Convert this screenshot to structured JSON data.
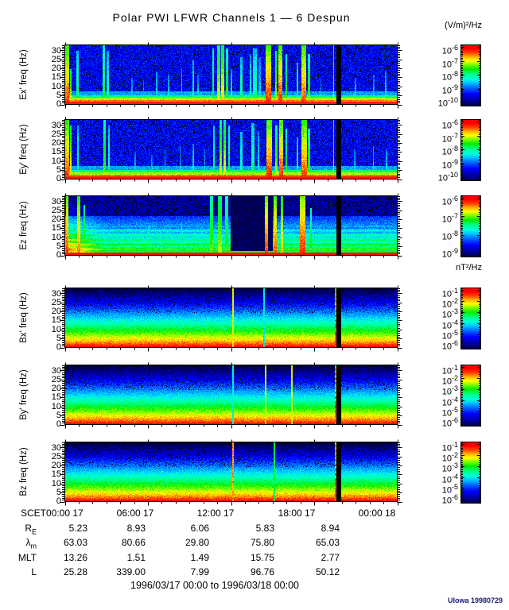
{
  "title": "Polar PWI LFWR Channels 1 — 6 Despun",
  "units": {
    "electric": "(V/m)²/Hz",
    "magnetic": "nT²/Hz"
  },
  "credit": "UIowa 19980729",
  "footer": {
    "range": "1996/03/17 00:00 to 1996/03/18 00:00"
  },
  "time_axis": {
    "label": "SCET",
    "ticks": [
      "00:00 17",
      "06:00 17",
      "12:00 17",
      "18:00 17",
      "00:00 18"
    ]
  },
  "ephemeris": {
    "rows": [
      {
        "label_main": "R",
        "label_sub": "E",
        "values": [
          "5.23",
          "8.93",
          "6.06",
          "5.83",
          "8.94"
        ]
      },
      {
        "label_main": "λ",
        "label_sub": "m",
        "values": [
          "63.03",
          "80.66",
          "29.80",
          "75.80",
          "65.03"
        ]
      },
      {
        "label_main": "MLT",
        "label_sub": "",
        "values": [
          "13.26",
          "1.51",
          "1.49",
          "15.75",
          "2.77"
        ]
      },
      {
        "label_main": "L",
        "label_sub": "",
        "values": [
          "25.28",
          "339.00",
          "7.99",
          "96.76",
          "50.12"
        ]
      }
    ]
  },
  "chart_data": {
    "type": "heatmap",
    "title": "Polar PWI LFWR Channels 1 — 6 Despun",
    "x_range_hours": [
      0,
      24
    ],
    "x_major_ticks_hours": [
      0,
      6,
      12,
      18,
      24
    ],
    "x_tick_labels": [
      "00:00 17",
      "06:00 17",
      "12:00 17",
      "18:00 17",
      "00:00 18"
    ],
    "y_range_hz": [
      0,
      33
    ],
    "y_major_ticks_hz": [
      0,
      5,
      10,
      15,
      20,
      25,
      30
    ],
    "electric_scale": "(V/m)²/Hz",
    "magnetic_scale": "nT²/Hz",
    "colormap_stops": [
      [
        0.0,
        "#000000"
      ],
      [
        0.06,
        "#00004d"
      ],
      [
        0.14,
        "#0000a0"
      ],
      [
        0.25,
        "#0000ff"
      ],
      [
        0.35,
        "#0066ff"
      ],
      [
        0.44,
        "#00ccff"
      ],
      [
        0.5,
        "#00ffdd"
      ],
      [
        0.58,
        "#00ff88"
      ],
      [
        0.66,
        "#00ee00"
      ],
      [
        0.74,
        "#88ff00"
      ],
      [
        0.8,
        "#ffff00"
      ],
      [
        0.87,
        "#ffaa00"
      ],
      [
        0.93,
        "#ff4400"
      ],
      [
        1.0,
        "#ff0000"
      ]
    ],
    "panels": [
      {
        "id": "Ex",
        "ylabel": "Ex' freq (Hz)",
        "kind": "E",
        "seed": 11,
        "colorbar_exponents": [
          "-6",
          "-7",
          "-8",
          "-9",
          "-10"
        ],
        "gap": {
          "t": 0.824,
          "w": 0.013
        },
        "features": [
          {
            "t": 0.005,
            "w": 0.01,
            "h": 1.0,
            "v": 0.96
          },
          {
            "t": 0.015,
            "w": 0.006,
            "h": 0.6,
            "v": 0.8
          },
          {
            "t": 0.036,
            "w": 0.005,
            "h": 0.9,
            "v": 0.62
          },
          {
            "t": 0.115,
            "w": 0.007,
            "h": 1.0,
            "v": 0.66
          },
          {
            "t": 0.127,
            "w": 0.005,
            "h": 0.9,
            "v": 0.58
          },
          {
            "t": 0.2,
            "w": 0.004,
            "h": 0.45,
            "v": 0.5
          },
          {
            "t": 0.235,
            "w": 0.004,
            "h": 0.4,
            "v": 0.48
          },
          {
            "t": 0.275,
            "w": 0.004,
            "h": 0.55,
            "v": 0.52
          },
          {
            "t": 0.31,
            "w": 0.004,
            "h": 0.5,
            "v": 0.5
          },
          {
            "t": 0.35,
            "w": 0.004,
            "h": 0.6,
            "v": 0.52
          },
          {
            "t": 0.385,
            "w": 0.005,
            "h": 0.75,
            "v": 0.55
          },
          {
            "t": 0.4,
            "w": 0.004,
            "h": 0.5,
            "v": 0.5
          },
          {
            "t": 0.445,
            "w": 0.006,
            "h": 0.95,
            "v": 0.66
          },
          {
            "t": 0.462,
            "w": 0.009,
            "h": 1.0,
            "v": 0.82
          },
          {
            "t": 0.474,
            "w": 0.009,
            "h": 1.0,
            "v": 0.86
          },
          {
            "t": 0.487,
            "w": 0.006,
            "h": 0.95,
            "v": 0.7
          },
          {
            "t": 0.5,
            "w": 0.004,
            "h": 0.6,
            "v": 0.55
          },
          {
            "t": 0.53,
            "w": 0.005,
            "h": 0.8,
            "v": 0.6
          },
          {
            "t": 0.558,
            "w": 0.006,
            "h": 0.85,
            "v": 0.55
          },
          {
            "t": 0.57,
            "w": 0.012,
            "h": 0.95,
            "v": 0.6
          },
          {
            "t": 0.585,
            "w": 0.006,
            "h": 0.8,
            "v": 0.5
          },
          {
            "t": 0.612,
            "w": 0.018,
            "h": 1.0,
            "v": 0.98
          },
          {
            "t": 0.634,
            "w": 0.006,
            "h": 0.9,
            "v": 0.8
          },
          {
            "t": 0.648,
            "w": 0.012,
            "h": 1.0,
            "v": 0.97
          },
          {
            "t": 0.665,
            "w": 0.005,
            "h": 0.85,
            "v": 0.7
          },
          {
            "t": 0.7,
            "w": 0.005,
            "h": 0.7,
            "v": 0.6
          },
          {
            "t": 0.718,
            "w": 0.016,
            "h": 1.0,
            "v": 0.95
          },
          {
            "t": 0.733,
            "w": 0.007,
            "h": 0.85,
            "v": 0.72
          },
          {
            "t": 0.77,
            "w": 0.004,
            "h": 0.45,
            "v": 0.5
          },
          {
            "t": 0.808,
            "w": 0.004,
            "h": 1.0,
            "v": 0.8
          },
          {
            "t": 0.874,
            "w": 0.004,
            "h": 0.45,
            "v": 0.5
          },
          {
            "t": 0.93,
            "w": 0.004,
            "h": 0.5,
            "v": 0.48
          },
          {
            "t": 0.965,
            "w": 0.004,
            "h": 0.55,
            "v": 0.52
          }
        ]
      },
      {
        "id": "Ey",
        "ylabel": "Ey' freq (Hz)",
        "kind": "E",
        "seed": 22,
        "colorbar_exponents": [
          "-6",
          "-7",
          "-8",
          "-9",
          "-10"
        ],
        "gap": {
          "t": 0.824,
          "w": 0.013
        },
        "features": [
          {
            "t": 0.005,
            "w": 0.01,
            "h": 1.0,
            "v": 0.96
          },
          {
            "t": 0.016,
            "w": 0.006,
            "h": 0.9,
            "v": 0.85
          },
          {
            "t": 0.037,
            "w": 0.005,
            "h": 0.9,
            "v": 0.6
          },
          {
            "t": 0.118,
            "w": 0.008,
            "h": 1.0,
            "v": 0.74
          },
          {
            "t": 0.131,
            "w": 0.005,
            "h": 0.9,
            "v": 0.6
          },
          {
            "t": 0.21,
            "w": 0.004,
            "h": 0.45,
            "v": 0.5
          },
          {
            "t": 0.26,
            "w": 0.004,
            "h": 0.4,
            "v": 0.48
          },
          {
            "t": 0.3,
            "w": 0.004,
            "h": 0.5,
            "v": 0.5
          },
          {
            "t": 0.345,
            "w": 0.004,
            "h": 0.55,
            "v": 0.52
          },
          {
            "t": 0.385,
            "w": 0.004,
            "h": 0.6,
            "v": 0.52
          },
          {
            "t": 0.42,
            "w": 0.004,
            "h": 0.5,
            "v": 0.5
          },
          {
            "t": 0.447,
            "w": 0.005,
            "h": 0.9,
            "v": 0.62
          },
          {
            "t": 0.468,
            "w": 0.008,
            "h": 1.0,
            "v": 0.8
          },
          {
            "t": 0.48,
            "w": 0.007,
            "h": 1.0,
            "v": 0.84
          },
          {
            "t": 0.492,
            "w": 0.005,
            "h": 0.9,
            "v": 0.66
          },
          {
            "t": 0.53,
            "w": 0.005,
            "h": 0.8,
            "v": 0.58
          },
          {
            "t": 0.565,
            "w": 0.01,
            "h": 0.95,
            "v": 0.6
          },
          {
            "t": 0.582,
            "w": 0.006,
            "h": 0.8,
            "v": 0.52
          },
          {
            "t": 0.613,
            "w": 0.017,
            "h": 1.0,
            "v": 0.98
          },
          {
            "t": 0.635,
            "w": 0.006,
            "h": 0.9,
            "v": 0.78
          },
          {
            "t": 0.649,
            "w": 0.012,
            "h": 1.0,
            "v": 0.97
          },
          {
            "t": 0.666,
            "w": 0.005,
            "h": 0.85,
            "v": 0.7
          },
          {
            "t": 0.7,
            "w": 0.005,
            "h": 0.7,
            "v": 0.58
          },
          {
            "t": 0.719,
            "w": 0.016,
            "h": 1.0,
            "v": 0.95
          },
          {
            "t": 0.734,
            "w": 0.007,
            "h": 0.85,
            "v": 0.72
          },
          {
            "t": 0.808,
            "w": 0.004,
            "h": 1.0,
            "v": 0.8
          },
          {
            "t": 0.872,
            "w": 0.004,
            "h": 0.5,
            "v": 0.5
          },
          {
            "t": 0.928,
            "w": 0.004,
            "h": 0.55,
            "v": 0.5
          },
          {
            "t": 0.968,
            "w": 0.004,
            "h": 0.5,
            "v": 0.52
          }
        ]
      },
      {
        "id": "Ez",
        "ylabel": "Ez freq (Hz)",
        "kind": "Ez",
        "seed": 33,
        "colorbar_exponents": [
          "-6",
          "-7",
          "-8",
          "-9"
        ],
        "gap": {
          "t": 0.824,
          "w": 0.013
        },
        "dark_interval": [
          0.498,
          0.625
        ],
        "features": [
          {
            "t": 0.005,
            "w": 0.009,
            "h": 1.0,
            "v": 0.95
          },
          {
            "t": 0.04,
            "w": 0.009,
            "h": 1.0,
            "v": 0.9
          },
          {
            "t": 0.056,
            "w": 0.005,
            "h": 0.85,
            "v": 0.72
          },
          {
            "t": 0.25,
            "w": 0.004,
            "h": 0.5,
            "v": 0.58
          },
          {
            "t": 0.35,
            "w": 0.004,
            "h": 0.55,
            "v": 0.58
          },
          {
            "t": 0.44,
            "w": 0.008,
            "h": 1.0,
            "v": 0.72
          },
          {
            "t": 0.465,
            "w": 0.011,
            "h": 1.0,
            "v": 0.78
          },
          {
            "t": 0.486,
            "w": 0.008,
            "h": 1.0,
            "v": 0.7
          },
          {
            "t": 0.605,
            "w": 0.01,
            "h": 1.0,
            "v": 0.96
          },
          {
            "t": 0.632,
            "w": 0.008,
            "h": 1.0,
            "v": 0.93
          },
          {
            "t": 0.652,
            "w": 0.006,
            "h": 1.0,
            "v": 0.86
          },
          {
            "t": 0.715,
            "w": 0.017,
            "h": 1.0,
            "v": 0.97
          },
          {
            "t": 0.74,
            "w": 0.005,
            "h": 0.8,
            "v": 0.68
          }
        ]
      },
      {
        "id": "Bx",
        "ylabel": "Bx' freq (Hz)",
        "kind": "B",
        "seed": 44,
        "colorbar_exponents": [
          "-1",
          "-2",
          "-3",
          "-4",
          "-5",
          "-6"
        ],
        "gap": {
          "t": 0.824,
          "w": 0.013
        },
        "edge_line": {
          "t": 0.814,
          "v": 0.93
        },
        "dashes": {
          "t": 0.814,
          "w": 0.006
        },
        "lines": [
          {
            "t": 0.505,
            "w": 0.004,
            "v": 0.8
          },
          {
            "t": 0.598,
            "w": 0.004,
            "v": 0.48
          }
        ]
      },
      {
        "id": "By",
        "ylabel": "By' freq (Hz)",
        "kind": "B",
        "seed": 55,
        "colorbar_exponents": [
          "-1",
          "-2",
          "-3",
          "-4",
          "-5",
          "-6"
        ],
        "gap": {
          "t": 0.824,
          "w": 0.013
        },
        "edge_line": {
          "t": 0.814,
          "v": 0.93
        },
        "dashes": {
          "t": 0.814,
          "w": 0.006
        },
        "lines": [
          {
            "t": 0.505,
            "w": 0.004,
            "v": 0.5
          },
          {
            "t": 0.603,
            "w": 0.004,
            "v": 0.78
          },
          {
            "t": 0.682,
            "w": 0.004,
            "v": 0.8
          }
        ]
      },
      {
        "id": "Bz",
        "ylabel": "Bz freq (Hz)",
        "kind": "B",
        "seed": 66,
        "colorbar_exponents": [
          "-1",
          "-2",
          "-3",
          "-4",
          "-5",
          "-6"
        ],
        "gap": {
          "t": 0.824,
          "w": 0.013
        },
        "edge_line": {
          "t": 0.814,
          "v": 0.93
        },
        "dashes": {
          "t": 0.814,
          "w": 0.006
        },
        "lines": [
          {
            "t": 0.505,
            "w": 0.004,
            "v": 0.88
          },
          {
            "t": 0.629,
            "w": 0.004,
            "v": 0.62
          }
        ]
      }
    ]
  }
}
